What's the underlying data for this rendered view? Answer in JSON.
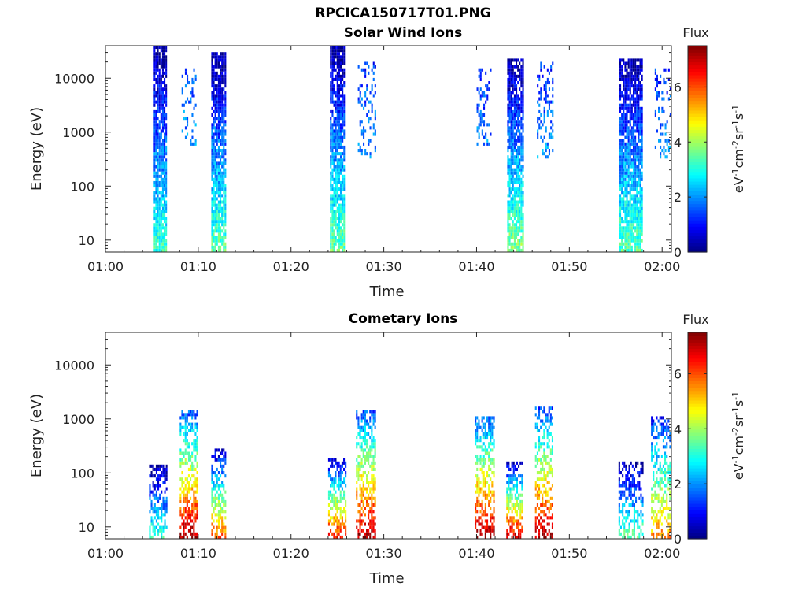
{
  "figure_title": "RPCICA150717T01.PNG",
  "chart_data": [
    {
      "type": "heatmap",
      "title": "Solar Wind Ions",
      "xlabel": "Time",
      "ylabel": "Energy (eV)",
      "x_ticks": [
        "01:00",
        "01:10",
        "01:20",
        "01:30",
        "01:40",
        "01:50",
        "02:00"
      ],
      "xlim_minutes": [
        0,
        61
      ],
      "y_ticks": [
        "10",
        "100",
        "1000",
        "10000"
      ],
      "y_tick_values": [
        10,
        100,
        1000,
        10000
      ],
      "ylim": [
        6,
        40000
      ],
      "yscale": "log",
      "colorbar": {
        "title": "Flux",
        "label": "eV-1cm-2sr-1s-1",
        "ticks": [
          "0",
          "2",
          "4",
          "6"
        ],
        "range": [
          0,
          7.5
        ],
        "colormap": "jet"
      },
      "bursts": [
        {
          "t_start": 5.2,
          "t_end": 6.6,
          "e_min": 6,
          "e_max": 35000,
          "intensity": [
            0.2,
            3.2
          ],
          "density": 0.85
        },
        {
          "t_start": 8.2,
          "t_end": 9.8,
          "e_min": 500,
          "e_max": 15000,
          "intensity": [
            1.5,
            2.8
          ],
          "density": 0.25
        },
        {
          "t_start": 11.4,
          "t_end": 13.0,
          "e_min": 6,
          "e_max": 27000,
          "intensity": [
            0.2,
            3.5
          ],
          "density": 0.85
        },
        {
          "t_start": 24.2,
          "t_end": 25.8,
          "e_min": 6,
          "e_max": 35000,
          "intensity": [
            0.2,
            3.5
          ],
          "density": 0.85
        },
        {
          "t_start": 27.2,
          "t_end": 29.0,
          "e_min": 300,
          "e_max": 20000,
          "intensity": [
            1.2,
            2.8
          ],
          "density": 0.25
        },
        {
          "t_start": 40.0,
          "t_end": 41.6,
          "e_min": 500,
          "e_max": 15000,
          "intensity": [
            1.2,
            2.8
          ],
          "density": 0.25
        },
        {
          "t_start": 43.3,
          "t_end": 45.0,
          "e_min": 6,
          "e_max": 22000,
          "intensity": [
            0.2,
            3.8
          ],
          "density": 0.85
        },
        {
          "t_start": 46.5,
          "t_end": 48.2,
          "e_min": 300,
          "e_max": 18000,
          "intensity": [
            1.2,
            2.8
          ],
          "density": 0.3
        },
        {
          "t_start": 55.4,
          "t_end": 57.9,
          "e_min": 6,
          "e_max": 22000,
          "intensity": [
            0.2,
            3.5
          ],
          "density": 0.85
        },
        {
          "t_start": 59.2,
          "t_end": 60.9,
          "e_min": 300,
          "e_max": 15000,
          "intensity": [
            1.2,
            2.8
          ],
          "density": 0.25
        }
      ]
    },
    {
      "type": "heatmap",
      "title": "Cometary Ions",
      "xlabel": "Time",
      "ylabel": "Energy (eV)",
      "x_ticks": [
        "01:00",
        "01:10",
        "01:20",
        "01:30",
        "01:40",
        "01:50",
        "02:00"
      ],
      "xlim_minutes": [
        0,
        61
      ],
      "y_ticks": [
        "10",
        "100",
        "1000",
        "10000"
      ],
      "y_tick_values": [
        10,
        100,
        1000,
        10000
      ],
      "ylim": [
        6,
        40000
      ],
      "yscale": "log",
      "colorbar": {
        "title": "Flux",
        "label": "eV-1cm-2sr-1s-1",
        "ticks": [
          "0",
          "2",
          "4",
          "6"
        ],
        "range": [
          0,
          7.5
        ],
        "colormap": "jet"
      },
      "bursts": [
        {
          "t_start": 4.7,
          "t_end": 6.6,
          "e_min": 6,
          "e_max": 130,
          "intensity": [
            0.2,
            3.2
          ],
          "density": 0.6
        },
        {
          "t_start": 8.0,
          "t_end": 9.8,
          "e_min": 6,
          "e_max": 1400,
          "intensity": [
            1.5,
            7.2
          ],
          "density": 0.55
        },
        {
          "t_start": 11.4,
          "t_end": 13.0,
          "e_min": 6,
          "e_max": 250,
          "intensity": [
            0.5,
            6.0
          ],
          "density": 0.55
        },
        {
          "t_start": 24.0,
          "t_end": 25.8,
          "e_min": 6,
          "e_max": 180,
          "intensity": [
            0.5,
            6.5
          ],
          "density": 0.6
        },
        {
          "t_start": 27.0,
          "t_end": 29.0,
          "e_min": 6,
          "e_max": 1300,
          "intensity": [
            1.5,
            7.2
          ],
          "density": 0.55
        },
        {
          "t_start": 39.8,
          "t_end": 41.8,
          "e_min": 6,
          "e_max": 1100,
          "intensity": [
            1.5,
            7.3
          ],
          "density": 0.55
        },
        {
          "t_start": 43.2,
          "t_end": 45.0,
          "e_min": 6,
          "e_max": 150,
          "intensity": [
            0.5,
            7.0
          ],
          "density": 0.6
        },
        {
          "t_start": 46.3,
          "t_end": 48.2,
          "e_min": 6,
          "e_max": 1500,
          "intensity": [
            1.5,
            7.2
          ],
          "density": 0.5
        },
        {
          "t_start": 55.3,
          "t_end": 57.9,
          "e_min": 6,
          "e_max": 160,
          "intensity": [
            0.2,
            3.5
          ],
          "density": 0.5
        },
        {
          "t_start": 58.8,
          "t_end": 60.9,
          "e_min": 6,
          "e_max": 1100,
          "intensity": [
            1.0,
            5.5
          ],
          "density": 0.5
        }
      ]
    }
  ]
}
